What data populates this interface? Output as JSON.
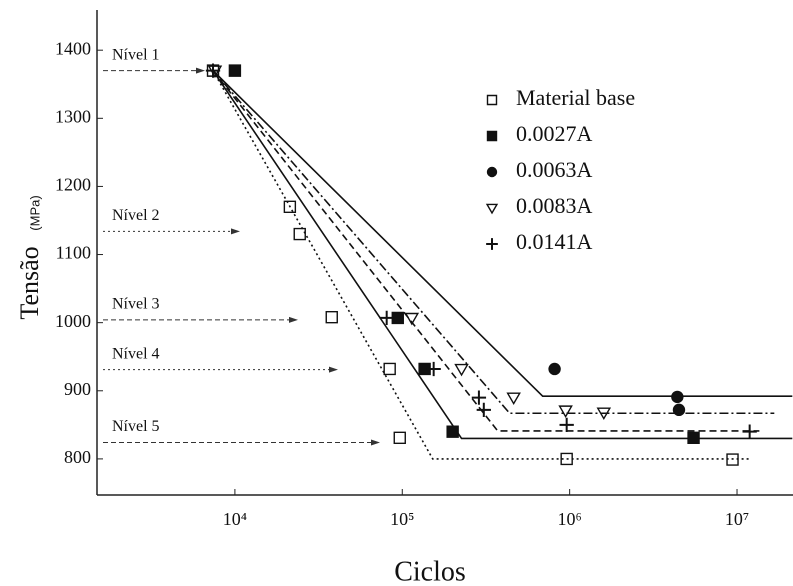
{
  "chart_data": {
    "type": "scatter",
    "xlabel": "Ciclos",
    "ylabel": "Tensão",
    "ylabel_unit": "(MPa)",
    "xscale": "log",
    "xlim": [
      1500,
      21600000
    ],
    "ylim": [
      747,
      1459
    ],
    "xticks": [
      {
        "value": 10000,
        "label": "10⁴"
      },
      {
        "value": 100000,
        "label": "10⁵"
      },
      {
        "value": 1000000,
        "label": "10⁶"
      },
      {
        "value": 10000000,
        "label": "10⁷"
      }
    ],
    "yticks": [
      800,
      900,
      1000,
      1100,
      1200,
      1300,
      1400
    ],
    "grid": false,
    "legend": "upper right",
    "annotations": [
      {
        "text": "Nível 1",
        "y": 1370
      },
      {
        "text": "Nível 2",
        "y": 1134
      },
      {
        "text": "Nível 3",
        "y": 1004
      },
      {
        "text": "Nível 4",
        "y": 931
      },
      {
        "text": "Nível 5",
        "y": 824
      }
    ],
    "series": [
      {
        "name": "Material base",
        "color": "#111111",
        "marker": "open-square",
        "line": "dotted",
        "x": [
          7400,
          21300,
          24400,
          37900,
          84100,
          96600,
          960000,
          9400000
        ],
        "values": [
          1370,
          1170,
          1130,
          1008,
          932,
          831,
          800,
          799
        ],
        "fit_x": [
          7400,
          152000,
          12200000
        ],
        "fit_y": [
          1370,
          800,
          800
        ]
      },
      {
        "name": "0.0027A",
        "color": "#111111",
        "marker": "filled-square",
        "line": "solid",
        "x": [
          10000,
          94000,
          136000,
          200000,
          5500000
        ],
        "values": [
          1370,
          1007,
          932,
          840,
          831
        ],
        "fit_x": [
          7400,
          226000,
          21400000
        ],
        "fit_y": [
          1370,
          830,
          830
        ]
      },
      {
        "name": "0.0063A",
        "color": "#111111",
        "marker": "filled-circle",
        "line": "solid",
        "x": [
          813000,
          4400000,
          4500000
        ],
        "values": [
          932,
          891,
          872
        ],
        "fit_x": [
          7400,
          690000,
          21400000
        ],
        "fit_y": [
          1370,
          892,
          892
        ]
      },
      {
        "name": "0.0083A",
        "color": "#111111",
        "marker": "open-triangle-down",
        "line": "dashdot",
        "x": [
          7600,
          114000,
          226000,
          463000,
          946000,
          1600000
        ],
        "values": [
          1370,
          1007,
          932,
          890,
          871,
          868
        ],
        "fit_x": [
          7400,
          438000,
          16700000
        ],
        "fit_y": [
          1370,
          867,
          867
        ]
      },
      {
        "name": "0.0141A",
        "color": "#111111",
        "marker": "plus",
        "line": "dashed",
        "x": [
          7400,
          80700,
          154000,
          287000,
          307000,
          960000,
          11900000
        ],
        "values": [
          1370,
          1007,
          932,
          890,
          872,
          850,
          840
        ],
        "fit_x": [
          7400,
          372000,
          13600000
        ],
        "fit_y": [
          1370,
          841,
          841
        ]
      }
    ]
  }
}
